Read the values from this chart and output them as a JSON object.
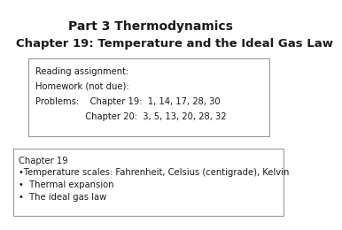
{
  "title1": "Part 3 Thermodynamics",
  "title2": "Chapter 19: Temperature and the Ideal Gas Law",
  "box1_lines": [
    [
      "Reading assignment:",
      0.0
    ],
    [
      "Homework (not due):",
      0.0
    ],
    [
      "Problems:        Chapter 19:  1, 14, 17, 28, 30",
      0.0
    ],
    [
      "                        Chapter 20:  3, 5, 13, 20, 28, 32",
      0.0
    ]
  ],
  "box2_lines": [
    "Chapter 19",
    "•Temperature scales: Fahrenheit, Celsius (centigrade), Kelvin",
    "•  Thermal expansion",
    "•  The ideal gas law"
  ],
  "bg_color": "#ffffff",
  "text_color": "#1a1a1a",
  "box_edge_color": "#999999",
  "title1_fontsize": 10,
  "title2_fontsize": 9.5,
  "body_fontsize": 7.2
}
